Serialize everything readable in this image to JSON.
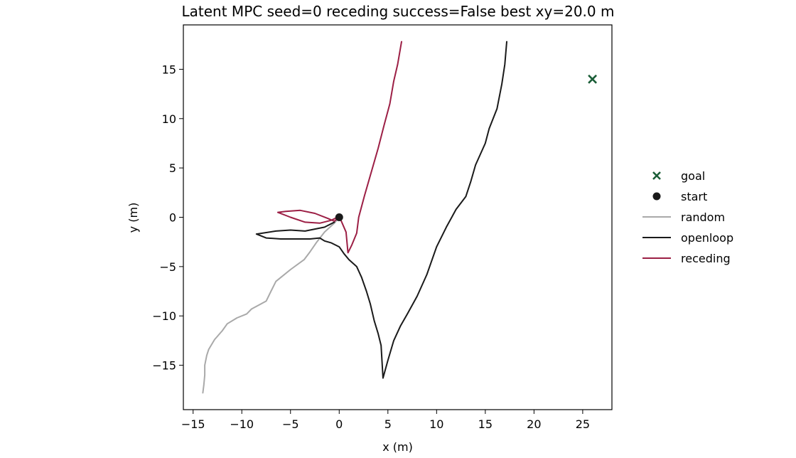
{
  "chart_data": {
    "type": "line",
    "title": "Latent MPC  seed=0  receding success=False  best xy=20.0 m",
    "xlabel": "x (m)",
    "ylabel": "y (m)",
    "xlim": [
      -16,
      28
    ],
    "ylim": [
      -19.5,
      19.5
    ],
    "xticks": [
      -15,
      -10,
      -5,
      0,
      5,
      10,
      15,
      20,
      25
    ],
    "yticks": [
      -15,
      -10,
      -5,
      0,
      5,
      10,
      15
    ],
    "xtick_labels": [
      "−15",
      "−10",
      "−5",
      "0",
      "5",
      "10",
      "15",
      "20",
      "25"
    ],
    "ytick_labels": [
      "−15",
      "−10",
      "−5",
      "0",
      "5",
      "10",
      "15"
    ],
    "grid": false,
    "legend_position": "right outside",
    "legend": [
      {
        "label": "goal",
        "kind": "x-marker",
        "color": "#1b5e38"
      },
      {
        "label": "start",
        "kind": "dot-marker",
        "color": "#1a1a1a"
      },
      {
        "label": "random",
        "kind": "line",
        "color": "#a9a9a9"
      },
      {
        "label": "openloop",
        "kind": "line",
        "color": "#1a1a1a"
      },
      {
        "label": "receding",
        "kind": "line",
        "color": "#9c1f45"
      }
    ],
    "goal": {
      "x": 26,
      "y": 14,
      "color": "#1b5e38"
    },
    "start": {
      "x": 0,
      "y": 0,
      "color": "#1a1a1a"
    },
    "series": [
      {
        "name": "random",
        "color": "#a9a9a9",
        "points": [
          [
            0,
            0
          ],
          [
            -0.5,
            -0.6
          ],
          [
            -1.5,
            -1.5
          ],
          [
            -2.3,
            -2.5
          ],
          [
            -3,
            -3.5
          ],
          [
            -3.6,
            -4.3
          ],
          [
            -5,
            -5.3
          ],
          [
            -6.5,
            -6.5
          ],
          [
            -7,
            -7.5
          ],
          [
            -7.5,
            -8.5
          ],
          [
            -9,
            -9.3
          ],
          [
            -9.5,
            -9.8
          ],
          [
            -10.5,
            -10.2
          ],
          [
            -11.5,
            -10.8
          ],
          [
            -12,
            -11.5
          ],
          [
            -12.8,
            -12.4
          ],
          [
            -13.4,
            -13.4
          ],
          [
            -13.6,
            -14
          ],
          [
            -13.8,
            -15
          ],
          [
            -13.8,
            -16
          ],
          [
            -13.9,
            -17
          ],
          [
            -14,
            -17.8
          ]
        ]
      },
      {
        "name": "openloop",
        "color": "#1a1a1a",
        "points": [
          [
            -0.5,
            -0.5
          ],
          [
            -1.5,
            -1
          ],
          [
            -2.5,
            -1.2
          ],
          [
            -3.5,
            -1.4
          ],
          [
            -5,
            -1.3
          ],
          [
            -6.5,
            -1.4
          ],
          [
            -8.5,
            -1.7
          ],
          [
            -7.5,
            -2.1
          ],
          [
            -6,
            -2.2
          ],
          [
            -4.5,
            -2.2
          ],
          [
            -3,
            -2.2
          ],
          [
            -2,
            -2.1
          ],
          [
            -1.5,
            -2.4
          ],
          [
            -0.8,
            -2.6
          ],
          [
            0,
            -3
          ],
          [
            0.5,
            -3.7
          ],
          [
            1,
            -4.3
          ],
          [
            1.8,
            -5
          ],
          [
            2.3,
            -6.1
          ],
          [
            2.8,
            -7.5
          ],
          [
            3.2,
            -8.8
          ],
          [
            3.6,
            -10.5
          ],
          [
            4,
            -11.8
          ],
          [
            4.3,
            -13
          ],
          [
            4.5,
            -16.3
          ],
          [
            5,
            -14.5
          ],
          [
            5.6,
            -12.5
          ],
          [
            6.3,
            -11
          ],
          [
            7,
            -9.8
          ],
          [
            8,
            -8
          ],
          [
            9,
            -5.8
          ],
          [
            10,
            -3
          ],
          [
            11,
            -1
          ],
          [
            12,
            0.8
          ],
          [
            13,
            2.1
          ],
          [
            13.5,
            3.6
          ],
          [
            14,
            5.3
          ],
          [
            15,
            7.5
          ],
          [
            15.4,
            9
          ],
          [
            16.2,
            11
          ],
          [
            16.7,
            13.5
          ],
          [
            17,
            15.5
          ],
          [
            17.2,
            17.8
          ]
        ]
      },
      {
        "name": "receding",
        "color": "#9c1f45",
        "points": [
          [
            0,
            0
          ],
          [
            -0.5,
            -0.4
          ],
          [
            -1.2,
            -0.1
          ],
          [
            -2.5,
            0.4
          ],
          [
            -4,
            0.7
          ],
          [
            -5.5,
            0.6
          ],
          [
            -6.3,
            0.5
          ],
          [
            -5,
            0
          ],
          [
            -3.5,
            -0.5
          ],
          [
            -2,
            -0.6
          ],
          [
            -0.8,
            -0.3
          ],
          [
            0,
            0.1
          ],
          [
            0.7,
            -1.5
          ],
          [
            0.9,
            -3.6
          ],
          [
            1.3,
            -2.8
          ],
          [
            1.8,
            -1.6
          ],
          [
            2,
            0
          ],
          [
            2.6,
            2.2
          ],
          [
            3.3,
            4.6
          ],
          [
            4,
            7
          ],
          [
            4.6,
            9.3
          ],
          [
            5.2,
            11.5
          ],
          [
            5.6,
            13.8
          ],
          [
            6,
            15.5
          ],
          [
            6.4,
            17.8
          ]
        ]
      }
    ]
  }
}
